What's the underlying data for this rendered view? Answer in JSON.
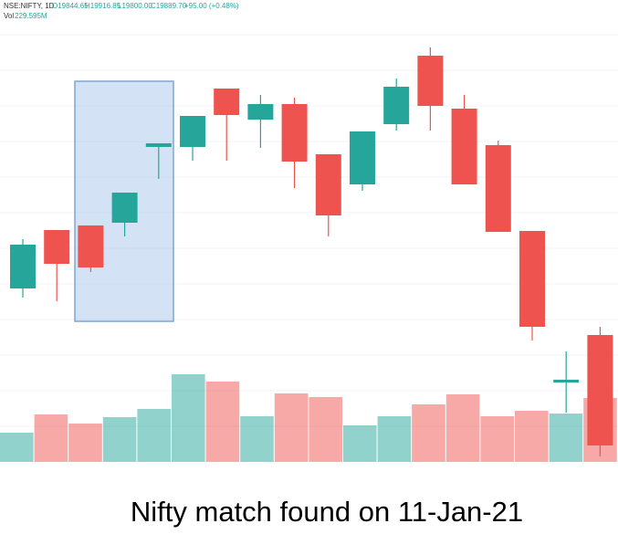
{
  "header": {
    "symbol": "NSE:NIFTY, 1D",
    "open": "O19844.65",
    "high": "H19916.85",
    "low": "L19800.00",
    "close": "C19889.70",
    "change": "+95.00 (+0.48%)",
    "volume_label": "Vol",
    "volume": "229.595M"
  },
  "caption": "Nifty match found on 11-Jan-21",
  "chart_data": {
    "type": "candlestick",
    "up_color": "#26a69a",
    "down_color": "#ef5350",
    "ylim": [
      0,
      510
    ],
    "open": [
      194,
      258,
      263,
      266,
      349,
      349,
      413,
      379,
      396,
      341,
      308,
      374,
      449,
      391,
      351,
      257,
      91,
      143
    ],
    "high": [
      248,
      258,
      263,
      299,
      353,
      383,
      413,
      406,
      403,
      341,
      366,
      424,
      458,
      406,
      356,
      257,
      125,
      152
    ],
    "low": [
      184,
      180,
      212,
      251,
      314,
      334,
      334,
      348,
      304,
      251,
      301,
      367,
      367,
      308,
      256,
      137,
      58,
      10
    ],
    "close": [
      242,
      221,
      217,
      299,
      353,
      383,
      384,
      396,
      333,
      274,
      366,
      415,
      394,
      308,
      256,
      152,
      94,
      22
    ],
    "volume": [
      32,
      52,
      42,
      49,
      58,
      96,
      88,
      50,
      75,
      71,
      40,
      50,
      63,
      74,
      50,
      56,
      53,
      70
    ],
    "volume_ylim": [
      0,
      506
    ]
  }
}
